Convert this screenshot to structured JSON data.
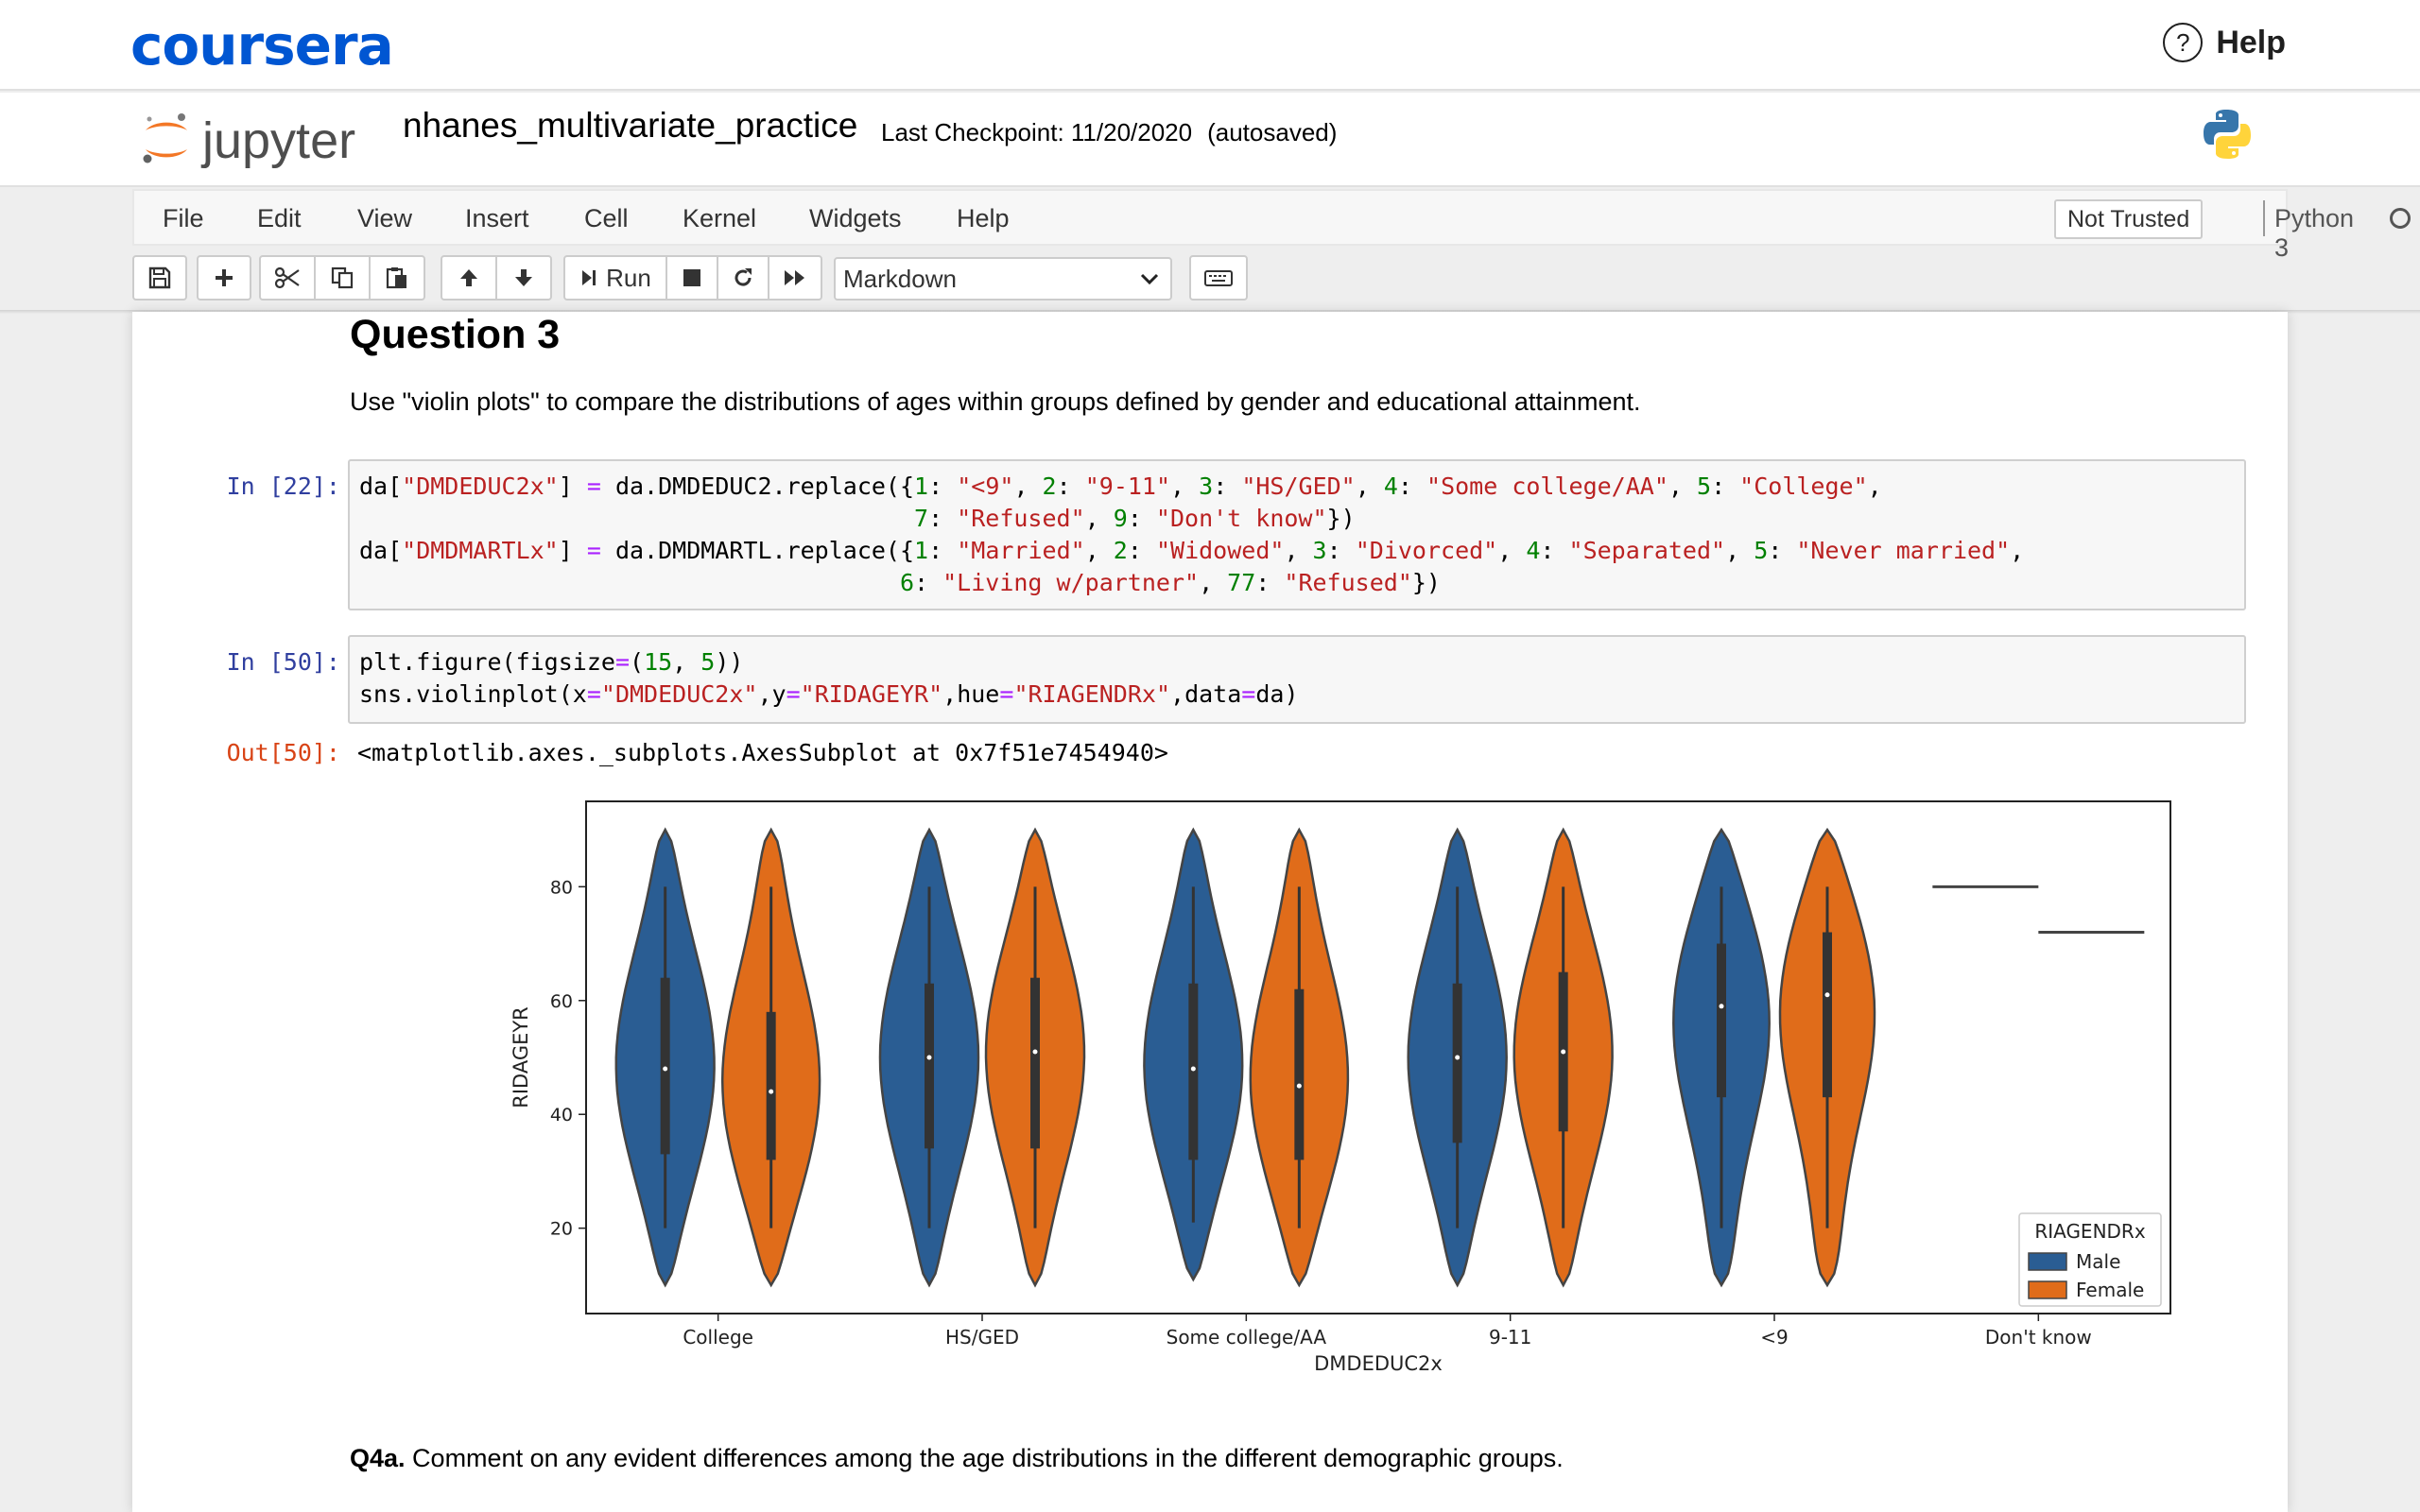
{
  "coursera": {
    "logo": "coursera",
    "help": "Help",
    "help_icon": "?"
  },
  "header": {
    "jupyter_word": "jupyter",
    "notebook_title": "nhanes_multivariate_practice",
    "checkpoint": "Last Checkpoint: 11/20/2020",
    "autosaved": "(autosaved)"
  },
  "menubar": {
    "items": [
      "File",
      "Edit",
      "View",
      "Insert",
      "Cell",
      "Kernel",
      "Widgets",
      "Help"
    ],
    "not_trusted": "Not Trusted",
    "kernel": "Python 3"
  },
  "toolbar": {
    "run_label": "Run",
    "cell_type": "Markdown"
  },
  "cells": {
    "q3_heading": "Question 3",
    "q3_text": "Use \"violin plots\" to compare the distributions of ages within groups defined by gender and educational attainment.",
    "in22_prompt": "In [22]:",
    "in50_prompt": "In [50]:",
    "out50_prompt": "Out[50]:",
    "out50_text": "<matplotlib.axes._subplots.AxesSubplot at 0x7f51e7454940>",
    "q4a_label": "Q4a.",
    "q4a_text": " Comment on any evident differences among the age distributions in the different demographic groups."
  },
  "code": {
    "c22": [
      [
        [
          "da[",
          ""
        ],
        [
          "\"DMDEDUC2x\"",
          "s"
        ],
        [
          "] ",
          ""
        ],
        [
          "=",
          "o"
        ],
        [
          " da.DMDEDUC2.replace({",
          ""
        ],
        [
          "1",
          "n"
        ],
        [
          ": ",
          ""
        ],
        [
          "\"<9\"",
          "s"
        ],
        [
          ", ",
          ""
        ],
        [
          "2",
          "n"
        ],
        [
          ": ",
          ""
        ],
        [
          "\"9-11\"",
          "s"
        ],
        [
          ", ",
          ""
        ],
        [
          "3",
          "n"
        ],
        [
          ": ",
          ""
        ],
        [
          "\"HS/GED\"",
          "s"
        ],
        [
          ", ",
          ""
        ],
        [
          "4",
          "n"
        ],
        [
          ": ",
          ""
        ],
        [
          "\"Some college/AA\"",
          "s"
        ],
        [
          ", ",
          ""
        ],
        [
          "5",
          "n"
        ],
        [
          ": ",
          ""
        ],
        [
          "\"College\"",
          "s"
        ],
        [
          ",",
          ""
        ]
      ],
      [
        [
          "                                       ",
          ""
        ],
        [
          "7",
          "n"
        ],
        [
          ": ",
          ""
        ],
        [
          "\"Refused\"",
          "s"
        ],
        [
          ", ",
          ""
        ],
        [
          "9",
          "n"
        ],
        [
          ": ",
          ""
        ],
        [
          "\"Don't know\"",
          "s"
        ],
        [
          "})",
          ""
        ]
      ],
      [
        [
          "da[",
          ""
        ],
        [
          "\"DMDMARTLx\"",
          "s"
        ],
        [
          "] ",
          ""
        ],
        [
          "=",
          "o"
        ],
        [
          " da.DMDMARTL.replace({",
          ""
        ],
        [
          "1",
          "n"
        ],
        [
          ": ",
          ""
        ],
        [
          "\"Married\"",
          "s"
        ],
        [
          ", ",
          ""
        ],
        [
          "2",
          "n"
        ],
        [
          ": ",
          ""
        ],
        [
          "\"Widowed\"",
          "s"
        ],
        [
          ", ",
          ""
        ],
        [
          "3",
          "n"
        ],
        [
          ": ",
          ""
        ],
        [
          "\"Divorced\"",
          "s"
        ],
        [
          ", ",
          ""
        ],
        [
          "4",
          "n"
        ],
        [
          ": ",
          ""
        ],
        [
          "\"Separated\"",
          "s"
        ],
        [
          ", ",
          ""
        ],
        [
          "5",
          "n"
        ],
        [
          ": ",
          ""
        ],
        [
          "\"Never married\"",
          "s"
        ],
        [
          ",",
          ""
        ]
      ],
      [
        [
          "                                      ",
          ""
        ],
        [
          "6",
          "n"
        ],
        [
          ": ",
          ""
        ],
        [
          "\"Living w/partner\"",
          "s"
        ],
        [
          ", ",
          ""
        ],
        [
          "77",
          "n"
        ],
        [
          ": ",
          ""
        ],
        [
          "\"Refused\"",
          "s"
        ],
        [
          "})",
          ""
        ]
      ]
    ],
    "c50": [
      [
        [
          "plt.figure(figsize",
          ""
        ],
        [
          "=",
          "o"
        ],
        [
          "(",
          ""
        ],
        [
          "15",
          "n"
        ],
        [
          ", ",
          ""
        ],
        [
          "5",
          "n"
        ],
        [
          "))",
          ""
        ]
      ],
      [
        [
          "sns.violinplot(x",
          ""
        ],
        [
          "=",
          "o"
        ],
        [
          "\"DMDEDUC2x\"",
          "s"
        ],
        [
          ",y",
          ""
        ],
        [
          "=",
          "o"
        ],
        [
          "\"RIDAGEYR\"",
          "s"
        ],
        [
          ",hue",
          ""
        ],
        [
          "=",
          "o"
        ],
        [
          "\"RIAGENDRx\"",
          "s"
        ],
        [
          ",data",
          ""
        ],
        [
          "=",
          "o"
        ],
        [
          "da)",
          ""
        ]
      ]
    ]
  },
  "chart_data": {
    "type": "violin",
    "xlabel": "DMDEDUC2x",
    "ylabel": "RIDAGEYR",
    "categories": [
      "College",
      "HS/GED",
      "Some college/AA",
      "9-11",
      "<9",
      "Don't know"
    ],
    "yticks": [
      20,
      40,
      60,
      80
    ],
    "ylim": [
      5,
      95
    ],
    "legend": {
      "title": "RIAGENDRx",
      "placement": "lower-right"
    },
    "series": [
      {
        "name": "Male",
        "color": "#2a5d93",
        "groups": [
          {
            "min": 20,
            "max": 80,
            "q1": 33,
            "median": 48,
            "q3": 64
          },
          {
            "min": 20,
            "max": 80,
            "q1": 34,
            "median": 50,
            "q3": 63
          },
          {
            "min": 21,
            "max": 80,
            "q1": 32,
            "median": 48,
            "q3": 63
          },
          {
            "min": 20,
            "max": 80,
            "q1": 35,
            "median": 50,
            "q3": 63
          },
          {
            "min": 20,
            "max": 80,
            "q1": 43,
            "median": 59,
            "q3": 70
          },
          {
            "min": 80,
            "max": 80,
            "q1": 80,
            "median": 80,
            "q3": 80
          }
        ]
      },
      {
        "name": "Female",
        "color": "#e06c1a",
        "groups": [
          {
            "min": 20,
            "max": 80,
            "q1": 32,
            "median": 44,
            "q3": 58
          },
          {
            "min": 20,
            "max": 80,
            "q1": 34,
            "median": 51,
            "q3": 64
          },
          {
            "min": 20,
            "max": 80,
            "q1": 32,
            "median": 45,
            "q3": 62
          },
          {
            "min": 20,
            "max": 80,
            "q1": 37,
            "median": 51,
            "q3": 65
          },
          {
            "min": 20,
            "max": 80,
            "q1": 43,
            "median": 61,
            "q3": 72
          },
          {
            "min": 72,
            "max": 72,
            "q1": 72,
            "median": 72,
            "q3": 72
          }
        ]
      }
    ]
  }
}
